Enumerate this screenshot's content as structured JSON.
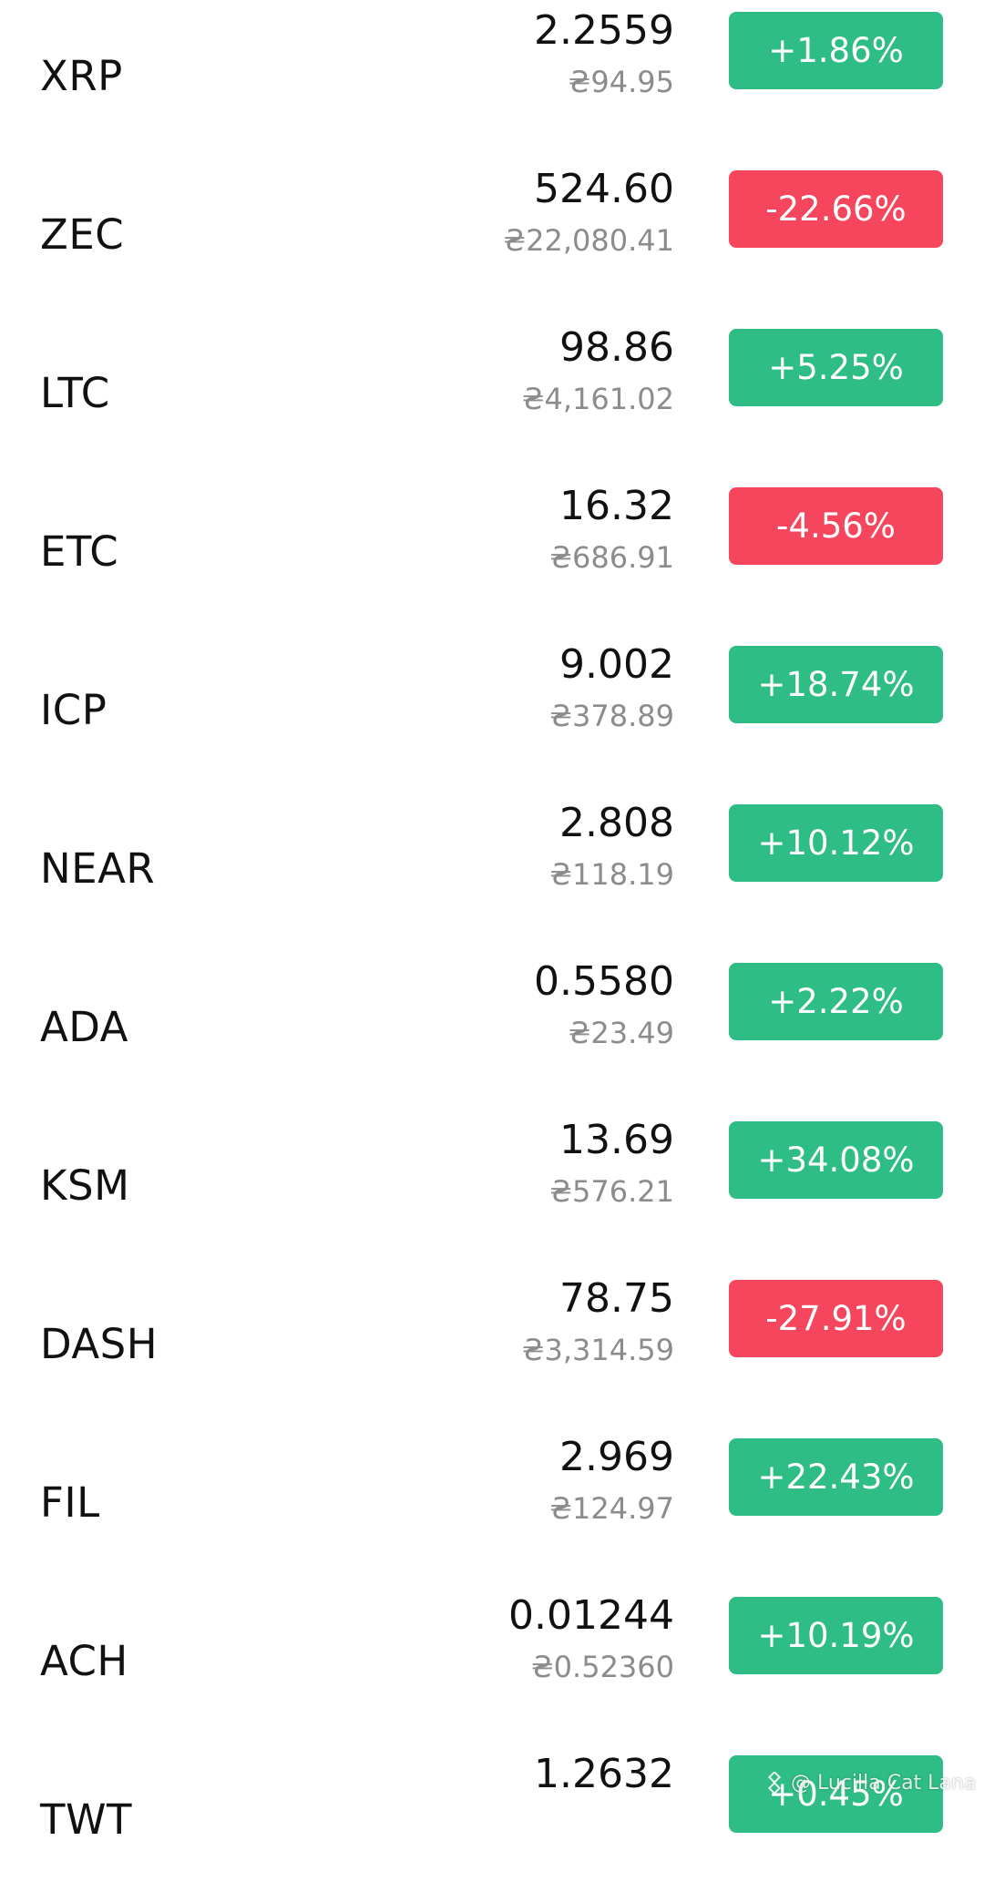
{
  "colors": {
    "up": "#2ebd85",
    "down": "#f6465d",
    "primary_text": "#111111",
    "secondary_text": "#8c8c8c"
  },
  "rows": [
    {
      "symbol": "XRP",
      "price": "2.2559",
      "fiat": "₴94.95",
      "change": "+1.86%",
      "direction": "up"
    },
    {
      "symbol": "ZEC",
      "price": "524.60",
      "fiat": "₴22,080.41",
      "change": "-22.66%",
      "direction": "down"
    },
    {
      "symbol": "LTC",
      "price": "98.86",
      "fiat": "₴4,161.02",
      "change": "+5.25%",
      "direction": "up"
    },
    {
      "symbol": "ETC",
      "price": "16.32",
      "fiat": "₴686.91",
      "change": "-4.56%",
      "direction": "down"
    },
    {
      "symbol": "ICP",
      "price": "9.002",
      "fiat": "₴378.89",
      "change": "+18.74%",
      "direction": "up"
    },
    {
      "symbol": "NEAR",
      "price": "2.808",
      "fiat": "₴118.19",
      "change": "+10.12%",
      "direction": "up"
    },
    {
      "symbol": "ADA",
      "price": "0.5580",
      "fiat": "₴23.49",
      "change": "+2.22%",
      "direction": "up"
    },
    {
      "symbol": "KSM",
      "price": "13.69",
      "fiat": "₴576.21",
      "change": "+34.08%",
      "direction": "up"
    },
    {
      "symbol": "DASH",
      "price": "78.75",
      "fiat": "₴3,314.59",
      "change": "-27.91%",
      "direction": "down"
    },
    {
      "symbol": "FIL",
      "price": "2.969",
      "fiat": "₴124.97",
      "change": "+22.43%",
      "direction": "up"
    },
    {
      "symbol": "ACH",
      "price": "0.01244",
      "fiat": "₴0.52360",
      "change": "+10.19%",
      "direction": "up"
    },
    {
      "symbol": "TWT",
      "price": "1.2632",
      "fiat": "",
      "change": "+0.45%",
      "direction": "up"
    }
  ],
  "watermark": {
    "text": "@ Lucilla Cat Lana",
    "logo_icon": "binance-logo-icon"
  }
}
